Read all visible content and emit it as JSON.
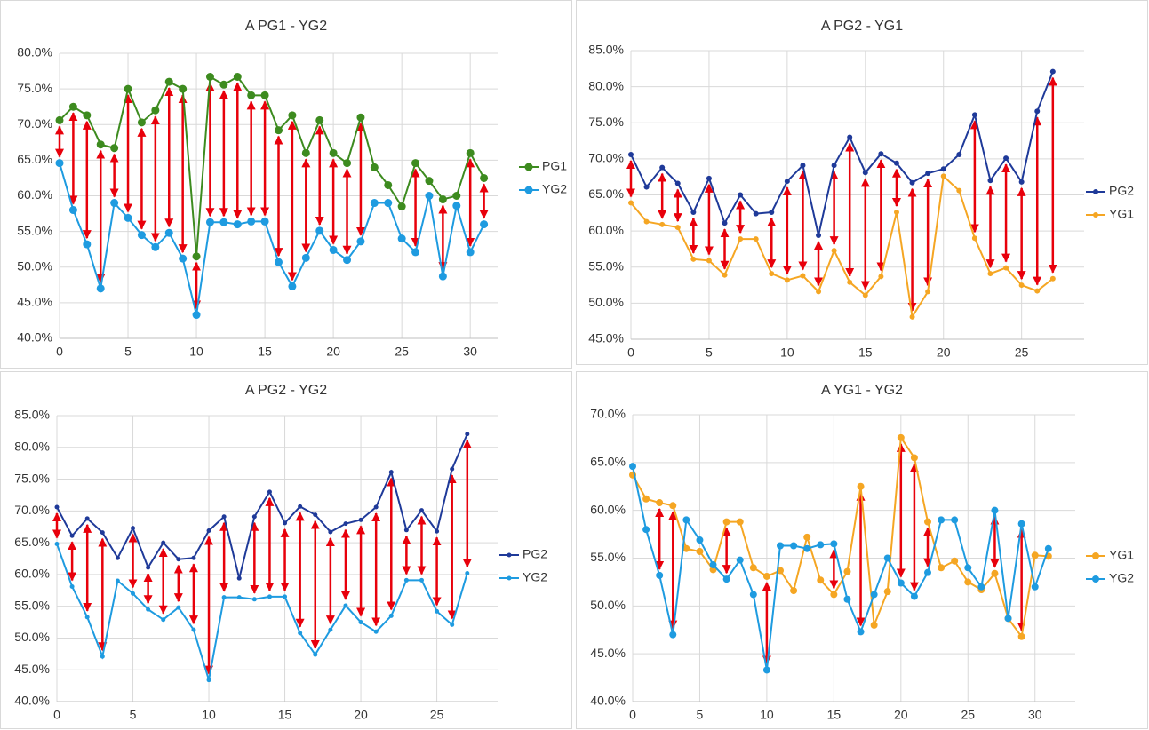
{
  "chart_data": [
    {
      "type": "line",
      "title": "A PG1 - YG2",
      "x": [
        0,
        1,
        2,
        3,
        4,
        5,
        6,
        7,
        8,
        9,
        10,
        11,
        12,
        13,
        14,
        15,
        16,
        17,
        18,
        19,
        20,
        21,
        22,
        23,
        24,
        25,
        26,
        27,
        28,
        29,
        30,
        31
      ],
      "series": [
        {
          "name": "PG1",
          "color": "#3d8b1f",
          "values": [
            70.6,
            72.5,
            71.3,
            67.2,
            66.7,
            75.0,
            70.3,
            72.0,
            76.0,
            75.0,
            51.5,
            76.7,
            75.6,
            76.7,
            74.1,
            74.1,
            69.2,
            71.3,
            66.0,
            70.6,
            66.0,
            64.6,
            71.0,
            64.0,
            61.5,
            58.5,
            64.6,
            62.1,
            59.5,
            60.0,
            66.0,
            62.5
          ]
        },
        {
          "name": "YG2",
          "color": "#1e9be0",
          "values": [
            64.6,
            58.0,
            53.2,
            47.0,
            59.0,
            56.9,
            54.5,
            52.8,
            54.8,
            51.2,
            43.3,
            56.3,
            56.3,
            56.0,
            56.4,
            56.4,
            50.7,
            47.3,
            51.3,
            55.1,
            52.4,
            51.0,
            53.6,
            59.0,
            59.0,
            54.0,
            52.1,
            60.0,
            48.7,
            58.6,
            52.1,
            56.0
          ]
        }
      ],
      "xlim": [
        0,
        32
      ],
      "xticks": [
        0,
        5,
        10,
        15,
        20,
        25,
        30
      ],
      "ylim": [
        40,
        80
      ],
      "yticks": [
        {
          "value": 40,
          "label": "40.0%"
        },
        {
          "value": 45,
          "label": "45.0%"
        },
        {
          "value": 50,
          "label": "50.0%"
        },
        {
          "value": 55,
          "label": "55.0%"
        },
        {
          "value": 60,
          "label": "60.0%"
        },
        {
          "value": 65,
          "label": "65.0%"
        },
        {
          "value": 70,
          "label": "70.0%"
        },
        {
          "value": 75,
          "label": "75.0%"
        },
        {
          "value": 80,
          "label": "80.0%"
        }
      ],
      "grid": true,
      "legend": "right",
      "arrow_color": "#e8000b"
    },
    {
      "type": "line",
      "title": "A PG2 - YG1",
      "x": [
        0,
        1,
        2,
        3,
        4,
        5,
        6,
        7,
        8,
        9,
        10,
        11,
        12,
        13,
        14,
        15,
        16,
        17,
        18,
        19,
        20,
        21,
        22,
        23,
        24,
        25,
        26,
        27
      ],
      "series": [
        {
          "name": "PG2",
          "color": "#1f3a99",
          "values": [
            70.6,
            66.1,
            68.8,
            66.6,
            62.6,
            67.3,
            61.1,
            65.0,
            62.4,
            62.6,
            66.9,
            69.1,
            59.4,
            69.1,
            73.0,
            68.1,
            70.7,
            69.4,
            66.7,
            68.0,
            68.6,
            70.6,
            76.1,
            67.0,
            70.1,
            66.8,
            76.6,
            82.1
          ]
        },
        {
          "name": "YG1",
          "color": "#f5a623",
          "values": [
            63.9,
            61.3,
            60.9,
            60.5,
            56.1,
            55.9,
            53.9,
            58.9,
            58.9,
            54.1,
            53.2,
            53.8,
            51.6,
            57.3,
            52.9,
            51.1,
            53.7,
            62.6,
            48.1,
            51.6,
            67.6,
            65.6,
            59.0,
            54.1,
            54.9,
            52.5,
            51.7,
            53.4
          ]
        }
      ],
      "xlim": [
        0,
        29
      ],
      "xticks": [
        0,
        5,
        10,
        15,
        20,
        25
      ],
      "ylim": [
        45,
        85
      ],
      "yticks": [
        {
          "value": 45,
          "label": "45.0%"
        },
        {
          "value": 50,
          "label": "50.0%"
        },
        {
          "value": 55,
          "label": "55.0%"
        },
        {
          "value": 60,
          "label": "60.0%"
        },
        {
          "value": 65,
          "label": "65.0%"
        },
        {
          "value": 70,
          "label": "70.0%"
        },
        {
          "value": 75,
          "label": "75.0%"
        },
        {
          "value": 80,
          "label": "80.0%"
        },
        {
          "value": 85,
          "label": "85.0%"
        }
      ],
      "grid": true,
      "legend": "right",
      "arrow_color": "#e8000b"
    },
    {
      "type": "line",
      "title": "A PG2 - YG2",
      "x": [
        0,
        1,
        2,
        3,
        4,
        5,
        6,
        7,
        8,
        9,
        10,
        11,
        12,
        13,
        14,
        15,
        16,
        17,
        18,
        19,
        20,
        21,
        22,
        23,
        24,
        25,
        26,
        27
      ],
      "series": [
        {
          "name": "PG2",
          "color": "#1f3a99",
          "values": [
            70.6,
            66.1,
            68.8,
            66.6,
            62.6,
            67.3,
            61.1,
            65.0,
            62.4,
            62.6,
            66.9,
            69.1,
            59.4,
            69.1,
            73.0,
            68.1,
            70.7,
            69.4,
            66.7,
            68.0,
            68.6,
            70.6,
            76.1,
            67.0,
            70.1,
            66.8,
            76.6,
            82.1
          ]
        },
        {
          "name": "YG2",
          "color": "#1e9be0",
          "values": [
            64.8,
            58.1,
            53.3,
            47.1,
            59.0,
            57.0,
            54.5,
            52.9,
            54.8,
            51.3,
            43.4,
            56.4,
            56.4,
            56.1,
            56.5,
            56.5,
            50.8,
            47.4,
            51.3,
            55.1,
            52.5,
            51.0,
            53.5,
            59.1,
            59.1,
            54.2,
            52.1,
            60.2
          ]
        }
      ],
      "xlim": [
        0,
        29
      ],
      "xticks": [
        0,
        5,
        10,
        15,
        20,
        25
      ],
      "ylim": [
        40,
        85
      ],
      "yticks": [
        {
          "value": 40,
          "label": "40.0%"
        },
        {
          "value": 45,
          "label": "45.0%"
        },
        {
          "value": 50,
          "label": "50.0%"
        },
        {
          "value": 55,
          "label": "55.0%"
        },
        {
          "value": 60,
          "label": "60.0%"
        },
        {
          "value": 65,
          "label": "65.0%"
        },
        {
          "value": 70,
          "label": "70.0%"
        },
        {
          "value": 75,
          "label": "75.0%"
        },
        {
          "value": 80,
          "label": "80.0%"
        },
        {
          "value": 85,
          "label": "85.0%"
        }
      ],
      "grid": true,
      "legend": "right",
      "arrow_color": "#e8000b"
    },
    {
      "type": "line",
      "title": "A YG1 - YG2",
      "x": [
        0,
        1,
        2,
        3,
        4,
        5,
        6,
        7,
        8,
        9,
        10,
        11,
        12,
        13,
        14,
        15,
        16,
        17,
        18,
        19,
        20,
        21,
        22,
        23,
        24,
        25,
        26,
        27,
        28,
        29,
        30,
        31
      ],
      "series": [
        {
          "name": "YG1",
          "color": "#f5a623",
          "values": [
            63.7,
            61.2,
            60.8,
            60.5,
            56.0,
            55.7,
            53.8,
            58.8,
            58.8,
            54.0,
            53.1,
            53.7,
            51.6,
            57.2,
            52.7,
            51.2,
            53.6,
            62.5,
            48.0,
            51.5,
            67.6,
            65.5,
            58.8,
            54.0,
            54.7,
            52.5,
            51.7,
            53.4,
            48.7,
            46.8,
            55.3,
            55.2
          ]
        },
        {
          "name": "YG2",
          "color": "#1e9be0",
          "values": [
            64.6,
            58.0,
            53.2,
            47.0,
            59.0,
            56.9,
            54.3,
            52.8,
            54.8,
            51.2,
            43.3,
            56.3,
            56.3,
            56.0,
            56.4,
            56.5,
            50.7,
            47.3,
            51.2,
            55.0,
            52.4,
            51.0,
            53.5,
            59.0,
            59.0,
            54.0,
            52.0,
            60.0,
            48.7,
            58.6,
            52.0,
            56.0
          ]
        }
      ],
      "xlim": [
        0,
        33
      ],
      "xticks": [
        0,
        5,
        10,
        15,
        20,
        25,
        30
      ],
      "ylim": [
        40,
        70
      ],
      "yticks": [
        {
          "value": 40,
          "label": "40.0%"
        },
        {
          "value": 45,
          "label": "45.0%"
        },
        {
          "value": 50,
          "label": "50.0%"
        },
        {
          "value": 55,
          "label": "55.0%"
        },
        {
          "value": 60,
          "label": "60.0%"
        },
        {
          "value": 65,
          "label": "65.0%"
        },
        {
          "value": 70,
          "label": "70.0%"
        }
      ],
      "grid": true,
      "legend": "right",
      "arrow_color": "#e8000b"
    }
  ]
}
